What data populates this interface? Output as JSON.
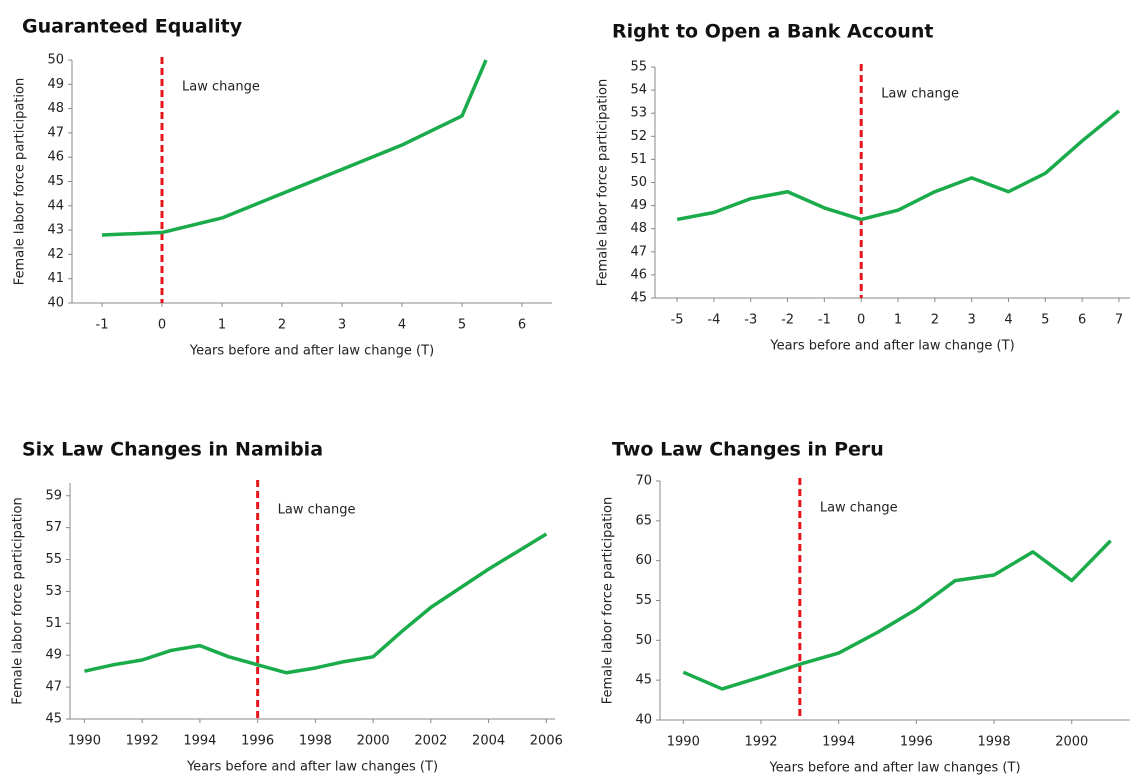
{
  "chart_data": [
    {
      "type": "line",
      "title": "Guaranteed Equality",
      "xlabel": "Years before and after law change (T)",
      "ylabel": "Female labor force participation",
      "annotation": "Law change",
      "law_change_x": 0,
      "x": [
        -1,
        0,
        1,
        2,
        3,
        4,
        5,
        5.4
      ],
      "values": [
        42.8,
        42.9,
        43.5,
        44.5,
        45.5,
        46.5,
        47.7,
        50
      ],
      "color": "#1aab4b",
      "law_color": "#e8141c",
      "xlim": [
        -1.5,
        6.5
      ],
      "ylim": [
        40,
        50
      ],
      "xticks": [
        -1,
        0,
        1,
        2,
        3,
        4,
        5,
        6
      ],
      "yticks": [
        40,
        41,
        42,
        43,
        44,
        45,
        46,
        47,
        48,
        49,
        50
      ]
    },
    {
      "type": "line",
      "title": "Right to Open a Bank Account",
      "xlabel": "Years before and after law change (T)",
      "ylabel": "Female labor force participation",
      "annotation": "Law change",
      "law_change_x": 0,
      "x": [
        -5,
        -4,
        -3,
        -2,
        -1,
        0,
        1,
        2,
        3,
        4,
        5,
        6,
        7
      ],
      "values": [
        48.4,
        48.7,
        49.3,
        49.6,
        48.9,
        48.4,
        48.8,
        49.6,
        50.2,
        49.6,
        50.4,
        51.8,
        53.1
      ],
      "color": "#1aab4b",
      "law_color": "#e8141c",
      "xlim": [
        -5.6,
        7.3
      ],
      "ylim": [
        45,
        55
      ],
      "xticks": [
        -5,
        -4,
        -3,
        -2,
        -1,
        0,
        1,
        2,
        3,
        4,
        5,
        6,
        7
      ],
      "yticks": [
        45,
        46,
        47,
        48,
        49,
        50,
        51,
        52,
        53,
        54,
        55
      ]
    },
    {
      "type": "line",
      "title": "Six Law Changes in Namibia",
      "xlabel": "Years before and after law changes (T)",
      "ylabel": "Female labor force participation",
      "annotation": "Law change",
      "law_change_x": 1996,
      "x": [
        1990,
        1991,
        1992,
        1993,
        1994,
        1995,
        1996,
        1997,
        1998,
        1999,
        2000,
        2001,
        2002,
        2003,
        2004,
        2005,
        2006
      ],
      "values": [
        48.0,
        48.4,
        48.7,
        49.3,
        49.6,
        48.9,
        48.4,
        47.9,
        48.2,
        48.6,
        48.9,
        50.5,
        52.0,
        53.2,
        54.4,
        55.5,
        56.6
      ],
      "color": "#1aab4b",
      "law_color": "#e8141c",
      "xlim": [
        1989.5,
        2006.3
      ],
      "ylim": [
        45,
        59.8
      ],
      "xticks": [
        1990,
        1992,
        1994,
        1996,
        1998,
        2000,
        2002,
        2004,
        2006
      ],
      "yticks": [
        45,
        47,
        49,
        51,
        53,
        55,
        57,
        59
      ]
    },
    {
      "type": "line",
      "title": "Two Law Changes in Peru",
      "xlabel": "Years before and after law changes (T)",
      "ylabel": "Female labor force participation",
      "annotation": "Law change",
      "law_change_x": 1993,
      "x": [
        1990,
        1991,
        1992,
        1993,
        1994,
        1995,
        1996,
        1997,
        1998,
        1999,
        2000,
        2001
      ],
      "values": [
        46,
        43.9,
        45.4,
        47,
        48.4,
        51,
        53.9,
        57.5,
        58.2,
        61.1,
        57.5,
        62.5
      ],
      "color": "#1aab4b",
      "law_color": "#e8141c",
      "xlim": [
        1989.4,
        2001.5
      ],
      "ylim": [
        40,
        70
      ],
      "xticks": [
        1990,
        1992,
        1994,
        1996,
        1998,
        2000
      ],
      "yticks": [
        40,
        45,
        50,
        55,
        60,
        65,
        70
      ]
    }
  ]
}
